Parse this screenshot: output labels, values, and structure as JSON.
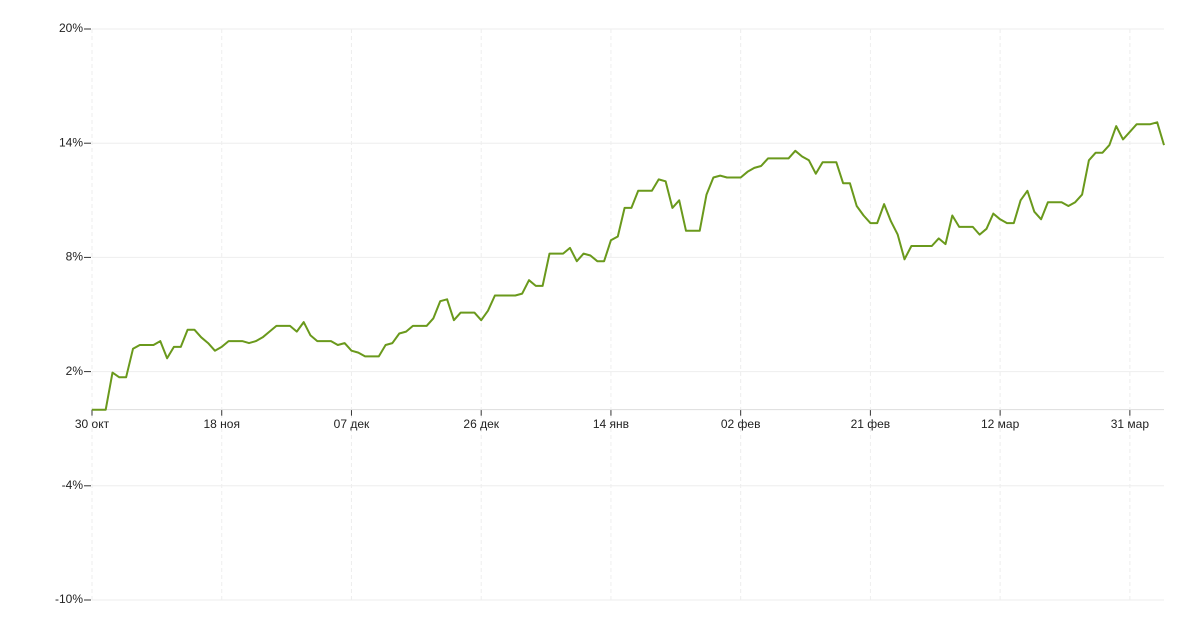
{
  "chart_data": {
    "type": "line",
    "categories": [
      "30 окт",
      null,
      null,
      null,
      null,
      null,
      null,
      null,
      null,
      null,
      null,
      null,
      null,
      null,
      null,
      null,
      null,
      null,
      null,
      "18 ноя",
      null,
      null,
      null,
      null,
      null,
      null,
      null,
      null,
      null,
      null,
      null,
      null,
      null,
      null,
      null,
      null,
      null,
      null,
      "07 дек",
      null,
      null,
      null,
      null,
      null,
      null,
      null,
      null,
      null,
      null,
      null,
      null,
      null,
      null,
      null,
      null,
      null,
      null,
      "26 дек",
      null,
      null,
      null,
      null,
      null,
      null,
      null,
      null,
      null,
      null,
      null,
      null,
      null,
      null,
      null,
      null,
      null,
      null,
      "14 янв",
      null,
      null,
      null,
      null,
      null,
      null,
      null,
      null,
      null,
      null,
      null,
      null,
      null,
      null,
      null,
      null,
      null,
      null,
      "02 фев",
      null,
      null,
      null,
      null,
      null,
      null,
      null,
      null,
      null,
      null,
      null,
      null,
      null,
      null,
      null,
      null,
      null,
      null,
      "21 фев",
      null,
      null,
      null,
      null,
      null,
      null,
      null,
      null,
      null,
      null,
      null,
      null,
      null,
      null,
      null,
      null,
      null,
      null,
      "12 мар",
      null,
      null,
      null,
      null,
      null,
      null,
      null,
      null,
      null,
      null,
      null,
      null,
      null,
      null,
      null,
      null,
      null,
      null,
      "31 мар",
      null,
      null,
      null,
      null,
      null
    ],
    "series": [
      {
        "color": "#6a991c",
        "values": [
          0,
          0,
          0,
          1.95,
          1.7,
          1.7,
          3.2,
          3.4,
          3.4,
          3.4,
          3.6,
          2.7,
          3.3,
          3.3,
          4.2,
          4.2,
          3.8,
          3.5,
          3.1,
          3.3,
          3.6,
          3.6,
          3.6,
          3.5,
          3.6,
          3.8,
          4.1,
          4.4,
          4.4,
          4.4,
          4.1,
          4.6,
          3.9,
          3.6,
          3.6,
          3.6,
          3.4,
          3.5,
          3.1,
          3.0,
          2.8,
          2.8,
          2.8,
          3.4,
          3.5,
          4.0,
          4.1,
          4.4,
          4.4,
          4.4,
          4.8,
          5.7,
          5.8,
          4.7,
          5.1,
          5.1,
          5.1,
          4.7,
          5.2,
          6.0,
          6.0,
          6.0,
          6.0,
          6.1,
          6.8,
          6.5,
          6.5,
          8.2,
          8.2,
          8.2,
          8.5,
          7.8,
          8.2,
          8.1,
          7.8,
          7.8,
          8.9,
          9.1,
          10.6,
          10.6,
          11.5,
          11.5,
          11.5,
          12.1,
          12.0,
          10.6,
          11.0,
          9.4,
          9.4,
          9.4,
          11.3,
          12.2,
          12.3,
          12.2,
          12.2,
          12.2,
          12.5,
          12.7,
          12.8,
          13.2,
          13.2,
          13.2,
          13.2,
          13.6,
          13.3,
          13.1,
          12.4,
          13.0,
          13.0,
          13.0,
          11.9,
          11.9,
          10.7,
          10.2,
          9.8,
          9.8,
          10.8,
          9.9,
          9.2,
          7.9,
          8.6,
          8.6,
          8.6,
          8.6,
          9.0,
          8.7,
          10.2,
          9.6,
          9.6,
          9.6,
          9.2,
          9.5,
          10.3,
          10.0,
          9.8,
          9.8,
          11.0,
          11.5,
          10.4,
          10.0,
          10.9,
          10.9,
          10.9,
          10.7,
          10.9,
          11.3,
          13.1,
          13.5,
          13.5,
          13.9,
          14.9,
          14.2,
          14.6,
          15.0,
          15.0,
          15.0,
          15.1,
          13.9
        ]
      }
    ],
    "ylim": [
      -10,
      20
    ],
    "yticks": [
      {
        "value": 20,
        "label": "20%"
      },
      {
        "value": 14,
        "label": "14%"
      },
      {
        "value": 8,
        "label": "8%"
      },
      {
        "value": 2,
        "label": "2%"
      },
      {
        "value": -4,
        "label": "-4%"
      },
      {
        "value": -10,
        "label": "-10%"
      }
    ],
    "grid": true
  }
}
